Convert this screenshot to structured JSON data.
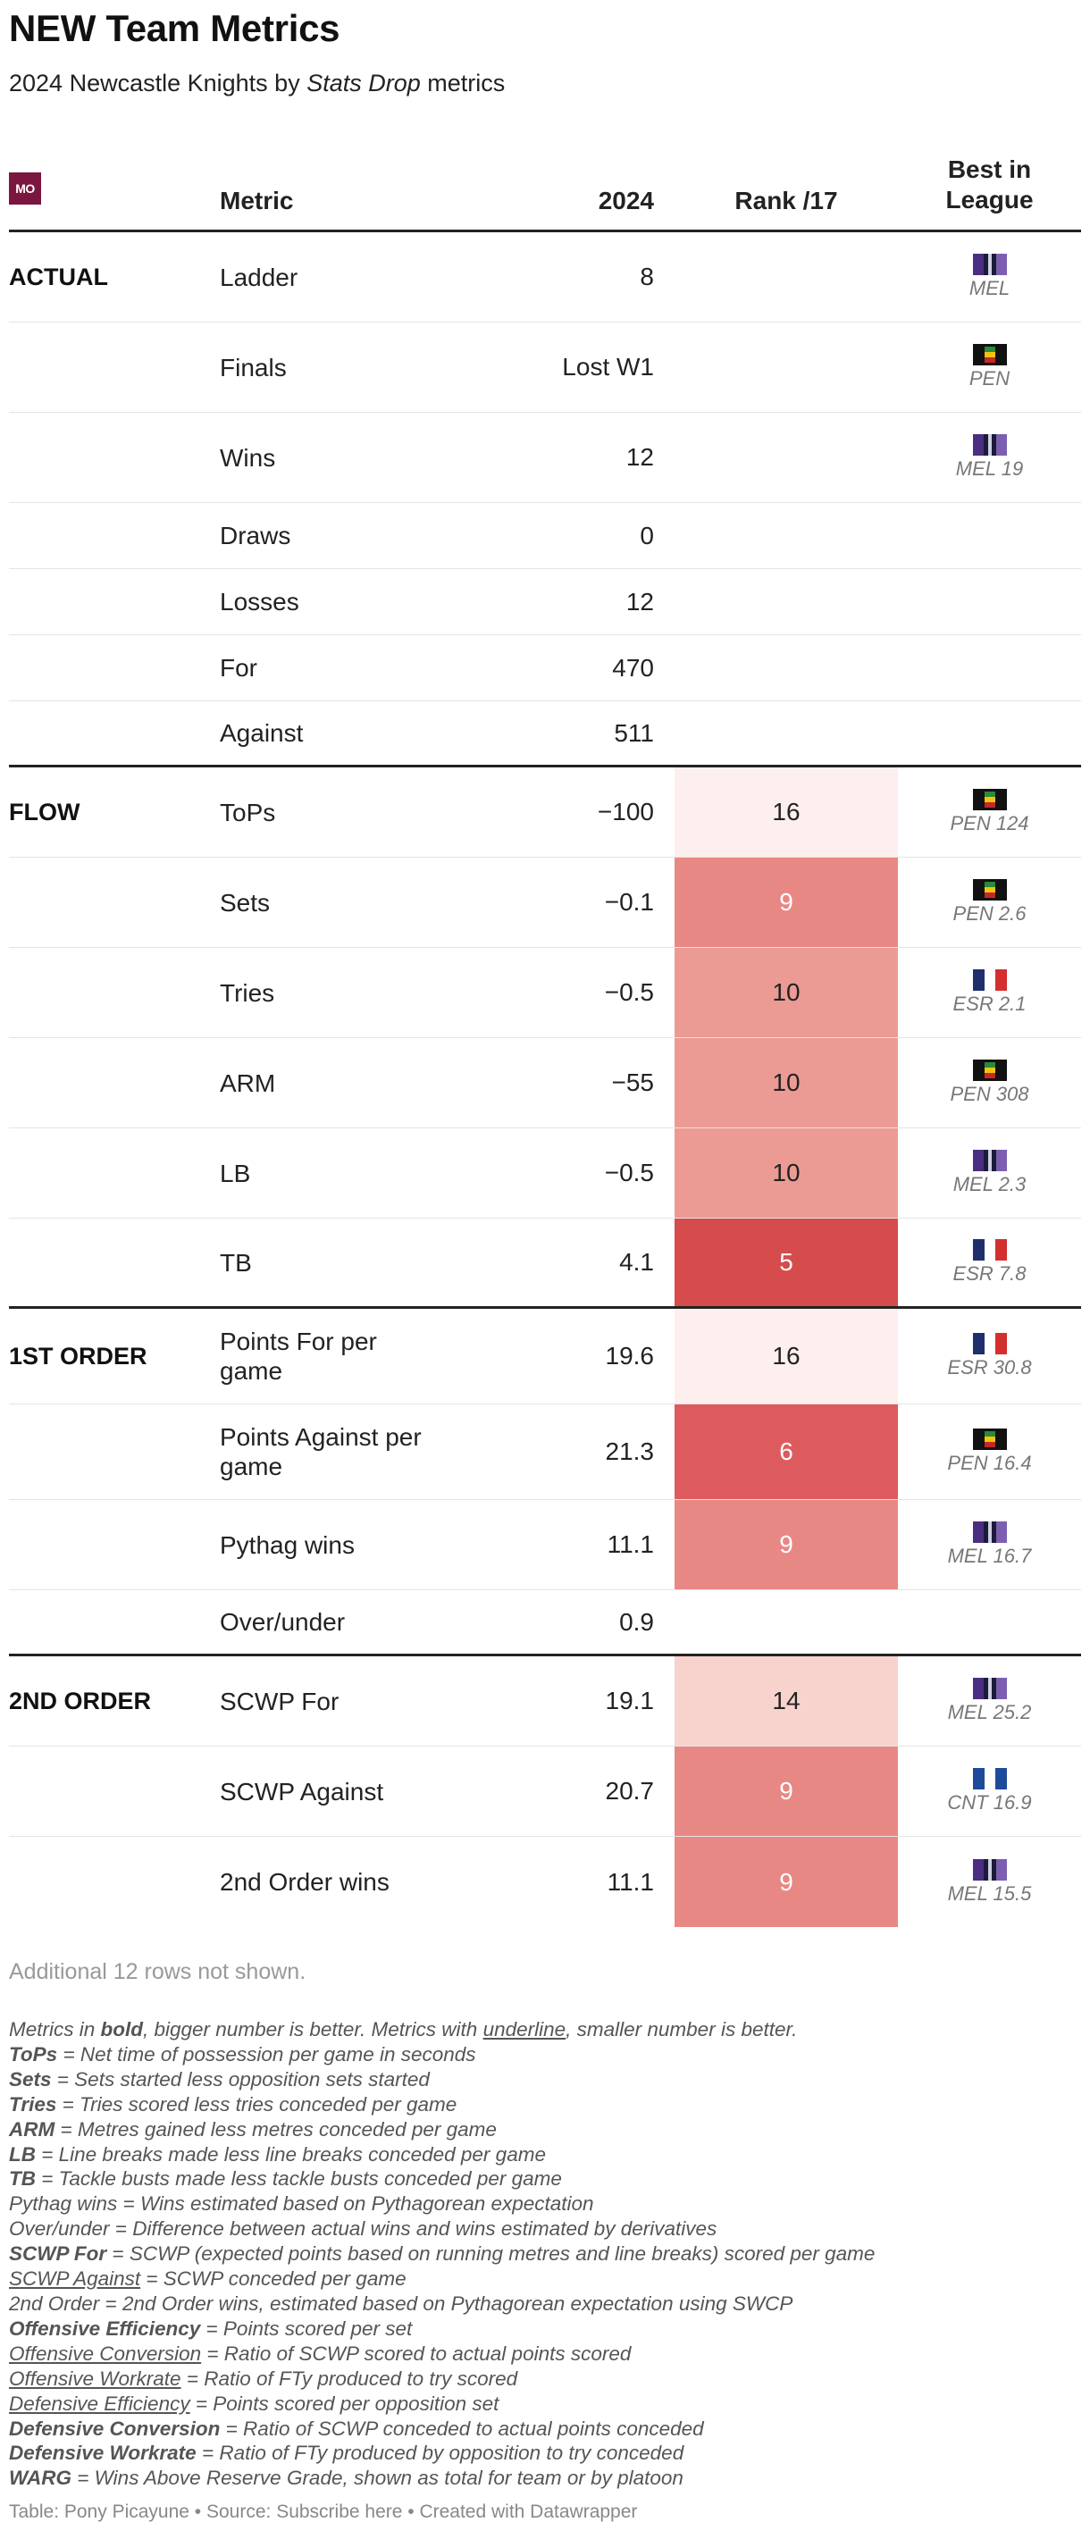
{
  "title": "NEW Team Metrics",
  "subtitle": {
    "prefix": "2024 Newcastle Knights by ",
    "brand": "Stats Drop",
    "suffix": " metrics"
  },
  "logo_text": "MO",
  "columns": {
    "metric": "Metric",
    "value": "2024",
    "rank": "Rank /17",
    "best_line1": "Best in",
    "best_line2": "League"
  },
  "chart_data": {
    "type": "table",
    "rank_total": 17,
    "rows": [
      {
        "group": "ACTUAL",
        "metric": "Ladder",
        "value": "8",
        "rank": null,
        "best": "MEL"
      },
      {
        "group": "",
        "metric": "Finals",
        "value": "Lost W1",
        "rank": null,
        "best": "PEN"
      },
      {
        "group": "",
        "metric": "Wins",
        "value": "12",
        "rank": null,
        "best": "MEL 19"
      },
      {
        "group": "",
        "metric": "Draws",
        "value": "0",
        "rank": null,
        "best": ""
      },
      {
        "group": "",
        "metric": "Losses",
        "value": "12",
        "rank": null,
        "best": ""
      },
      {
        "group": "",
        "metric": "For",
        "value": "470",
        "rank": null,
        "best": ""
      },
      {
        "group": "",
        "metric": "Against",
        "value": "511",
        "rank": null,
        "best": ""
      },
      {
        "group": "FLOW",
        "metric": "ToPs",
        "value": "−100",
        "rank": 16,
        "best": "PEN 124"
      },
      {
        "group": "",
        "metric": "Sets",
        "value": "−0.1",
        "rank": 9,
        "best": "PEN 2.6"
      },
      {
        "group": "",
        "metric": "Tries",
        "value": "−0.5",
        "rank": 10,
        "best": "ESR 2.1"
      },
      {
        "group": "",
        "metric": "ARM",
        "value": "−55",
        "rank": 10,
        "best": "PEN 308"
      },
      {
        "group": "",
        "metric": "LB",
        "value": "−0.5",
        "rank": 10,
        "best": "MEL 2.3"
      },
      {
        "group": "",
        "metric": "TB",
        "value": "4.1",
        "rank": 5,
        "best": "ESR 7.8"
      },
      {
        "group": "1ST ORDER",
        "metric": "Points For per game",
        "value": "19.6",
        "rank": 16,
        "best": "ESR 30.8"
      },
      {
        "group": "",
        "metric": "Points Against per game",
        "value": "21.3",
        "rank": 6,
        "best": "PEN 16.4"
      },
      {
        "group": "",
        "metric": "Pythag wins",
        "value": "11.1",
        "rank": 9,
        "best": "MEL 16.7"
      },
      {
        "group": "",
        "metric": "Over/under",
        "value": "0.9",
        "rank": null,
        "best": ""
      },
      {
        "group": "2ND ORDER",
        "metric": "SCWP For",
        "value": "19.1",
        "rank": 14,
        "best": "MEL 25.2"
      },
      {
        "group": "",
        "metric": "SCWP Against",
        "value": "20.7",
        "rank": 9,
        "best": "CNT 16.9"
      },
      {
        "group": "",
        "metric": "2nd Order wins",
        "value": "11.1",
        "rank": 9,
        "best": "MEL 15.5"
      }
    ]
  },
  "colors": {
    "rank_16": "#fcefed",
    "rank_14": "#f8d3ce",
    "rank_10": "#ec9a94",
    "rank_9": "#e88884",
    "rank_6": "#dd5b5e",
    "rank_5": "#d64b4b",
    "mel": [
      "#4b2d82",
      "#1b1b3a",
      "#7c5fb0"
    ],
    "pen": [
      "#111111",
      "#2a8a3a",
      "#f1c40f",
      "#c62828"
    ],
    "esr": [
      "#1f2f6b",
      "#ffffff",
      "#d32f2f"
    ],
    "cnt": [
      "#1e4a9c",
      "#ffffff",
      "#1e4a9c"
    ]
  },
  "note": "Additional 12 rows not shown.",
  "notes": [
    {
      "parts": [
        {
          "t": "Metrics in "
        },
        {
          "t": "bold",
          "s": "b"
        },
        {
          "t": ", bigger number is better. Metrics with "
        },
        {
          "t": "underline",
          "s": "u"
        },
        {
          "t": ", smaller number is better."
        }
      ]
    },
    {
      "parts": [
        {
          "t": "ToPs",
          "s": "b"
        },
        {
          "t": " = Net time of possession per game in seconds"
        }
      ]
    },
    {
      "parts": [
        {
          "t": "Sets",
          "s": "b"
        },
        {
          "t": " = Sets started less opposition sets started"
        }
      ]
    },
    {
      "parts": [
        {
          "t": "Tries",
          "s": "b"
        },
        {
          "t": " = Tries scored less tries conceded per game"
        }
      ]
    },
    {
      "parts": [
        {
          "t": "ARM",
          "s": "b"
        },
        {
          "t": " = Metres gained less metres conceded per game"
        }
      ]
    },
    {
      "parts": [
        {
          "t": "LB",
          "s": "b"
        },
        {
          "t": " = Line breaks made less line breaks conceded per game"
        }
      ]
    },
    {
      "parts": [
        {
          "t": "TB",
          "s": "b"
        },
        {
          "t": " = Tackle busts made less tackle busts conceded per game"
        }
      ]
    },
    {
      "parts": [
        {
          "t": "Pythag wins = Wins estimated based on Pythagorean expectation"
        }
      ]
    },
    {
      "parts": [
        {
          "t": "Over/under = Difference between actual wins and wins estimated by derivatives"
        }
      ]
    },
    {
      "parts": [
        {
          "t": "SCWP For",
          "s": "b"
        },
        {
          "t": " = SCWP (expected points based on running metres and line breaks) scored per game"
        }
      ]
    },
    {
      "parts": [
        {
          "t": "SCWP Against",
          "s": "u"
        },
        {
          "t": " = SCWP conceded per game"
        }
      ]
    },
    {
      "parts": [
        {
          "t": "2nd Order = 2nd Order wins, estimated based on Pythagorean expectation using SWCP"
        }
      ]
    },
    {
      "parts": [
        {
          "t": "Offensive Efficiency",
          "s": "b"
        },
        {
          "t": " = Points scored per set"
        }
      ]
    },
    {
      "parts": [
        {
          "t": "Offensive Conversion",
          "s": "u"
        },
        {
          "t": " = Ratio of SCWP scored to actual points scored"
        }
      ]
    },
    {
      "parts": [
        {
          "t": "Offensive Workrate",
          "s": "u"
        },
        {
          "t": " = Ratio of FTy produced to try scored"
        }
      ]
    },
    {
      "parts": [
        {
          "t": "Defensive Efficiency",
          "s": "u"
        },
        {
          "t": " = Points scored per opposition set"
        }
      ]
    },
    {
      "parts": [
        {
          "t": "Defensive Conversion",
          "s": "b"
        },
        {
          "t": " = Ratio of SCWP conceded to actual points conceded"
        }
      ]
    },
    {
      "parts": [
        {
          "t": "Defensive Workrate",
          "s": "b"
        },
        {
          "t": " = Ratio of FTy produced by opposition to try conceded"
        }
      ]
    },
    {
      "parts": [
        {
          "t": "WARG",
          "s": "b"
        },
        {
          "t": " = Wins Above Reserve Grade, shown as total for team or by platoon"
        }
      ]
    }
  ],
  "footer": "Table: Pony Picayune • Source: Subscribe here • Created with Datawrapper"
}
